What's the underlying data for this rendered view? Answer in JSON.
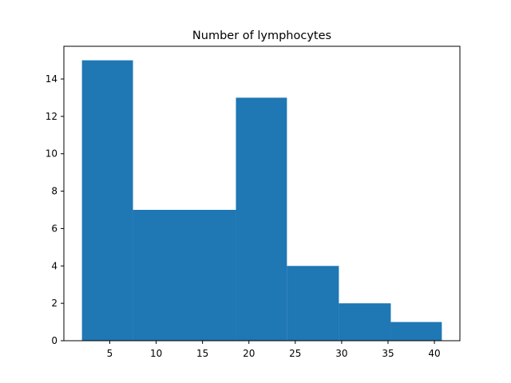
{
  "chart_data": {
    "type": "bar",
    "subtype": "histogram",
    "title": "Number of lymphocytes",
    "xlabel": "",
    "ylabel": "",
    "bins": [
      {
        "start": 2.0,
        "end": 7.5,
        "count": 15
      },
      {
        "start": 7.5,
        "end": 18.6,
        "count": 7
      },
      {
        "start": 18.6,
        "end": 24.1,
        "count": 13
      },
      {
        "start": 24.1,
        "end": 29.7,
        "count": 4
      },
      {
        "start": 29.7,
        "end": 35.3,
        "count": 2
      },
      {
        "start": 35.3,
        "end": 40.8,
        "count": 1
      }
    ],
    "xlim": [
      0.05,
      42.75
    ],
    "ylim": [
      0,
      15.75
    ],
    "xticks": [
      5,
      10,
      15,
      20,
      25,
      30,
      35,
      40
    ],
    "yticks": [
      0,
      2,
      4,
      6,
      8,
      10,
      12,
      14
    ],
    "bar_color": "#1f77b4",
    "grid": false,
    "legend": "none"
  }
}
